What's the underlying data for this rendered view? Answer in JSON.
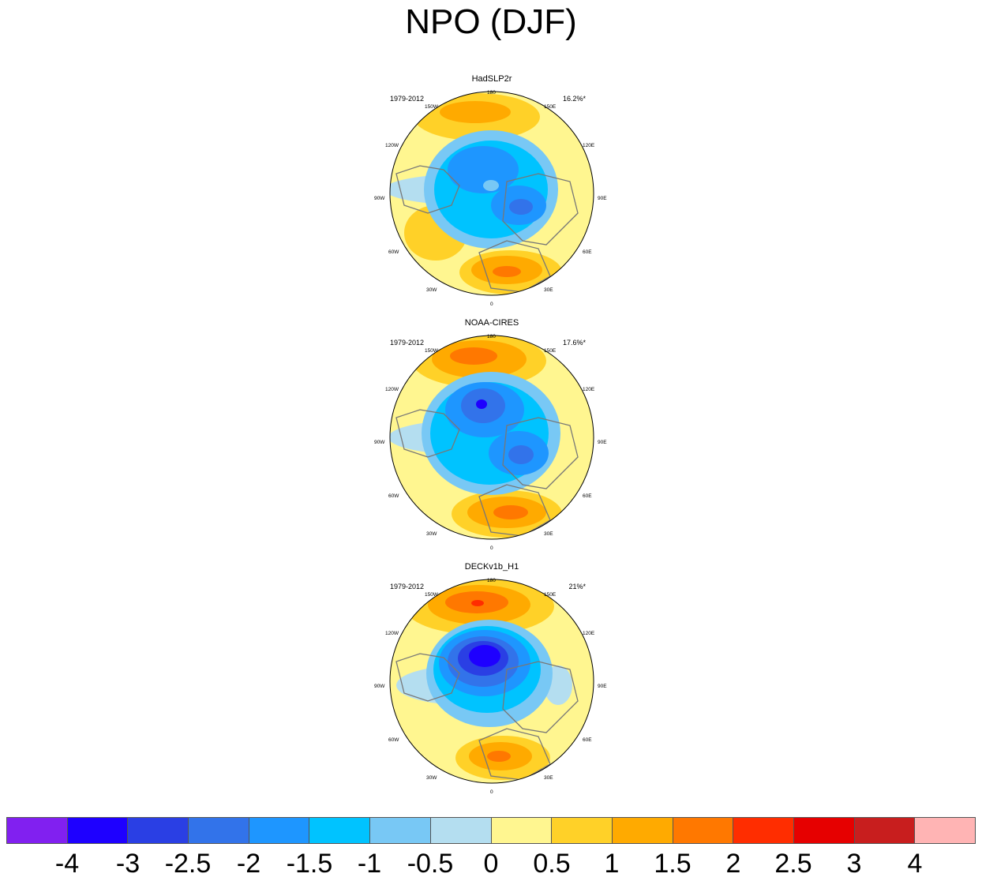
{
  "title": "NPO (DJF)",
  "panels": [
    {
      "name": "HadSLP2r",
      "period": "1979-2012",
      "stat": "16.2%*"
    },
    {
      "name": "NOAA-CIRES",
      "period": "1979-2012",
      "stat": "17.6%*"
    },
    {
      "name": "DECKv1b_H1",
      "period": "1979-2012",
      "stat": "21%*"
    }
  ],
  "longitude_labels": {
    "top": "180",
    "bottom": "0",
    "left_upper": "120W",
    "left_mid": "90W",
    "left_lower": "60W",
    "right_upper": "120E",
    "right_mid": "90E",
    "right_lower": "60E",
    "top_left": "150W",
    "top_right": "150E",
    "bottom_left": "30W",
    "bottom_right": "30E"
  },
  "colorbar": {
    "colors": [
      "#8120f0",
      "#1e00ff",
      "#2a3fe4",
      "#3273ea",
      "#1e96ff",
      "#00c3ff",
      "#78c8f5",
      "#b4def0",
      "#fff690",
      "#ffd128",
      "#ffaa00",
      "#ff7800",
      "#ff2d00",
      "#e60000",
      "#c81e1e",
      "#ffb4b4"
    ],
    "labels": [
      "-4",
      "-3",
      "-2.5",
      "-2",
      "-1.5",
      "-1",
      "-0.5",
      "0",
      "0.5",
      "1",
      "1.5",
      "2",
      "2.5",
      "3",
      "4"
    ]
  }
}
